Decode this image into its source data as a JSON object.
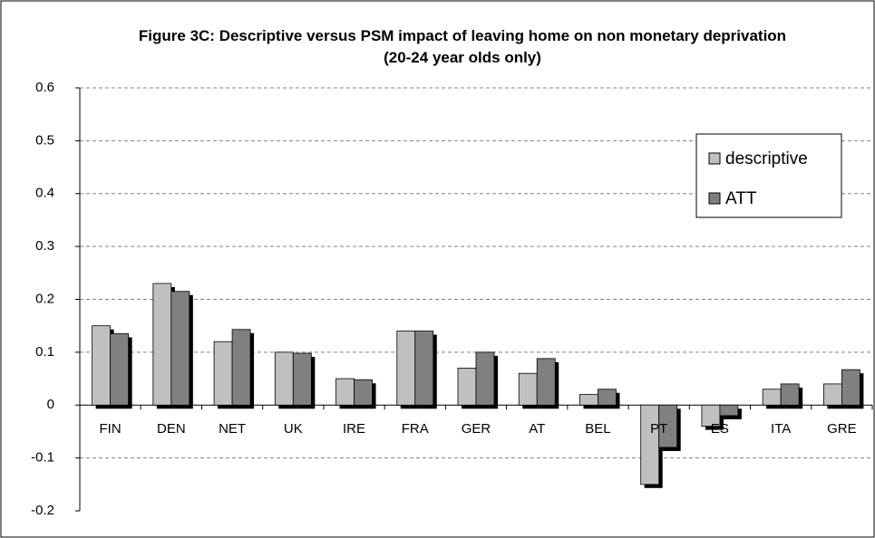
{
  "chart_data": {
    "type": "bar",
    "title": "Figure 3C: Descriptive versus PSM impact of leaving home on non monetary deprivation (20-24 year olds only)",
    "categories": [
      "FIN",
      "DEN",
      "NET",
      "UK",
      "IRE",
      "FRA",
      "GER",
      "AT",
      "BEL",
      "PT",
      "ES",
      "ITA",
      "GRE"
    ],
    "series": [
      {
        "name": "descriptive",
        "color": "#c0c0c0",
        "values": [
          0.15,
          0.23,
          0.12,
          0.1,
          0.05,
          0.14,
          0.07,
          0.06,
          0.02,
          -0.15,
          -0.04,
          0.03,
          0.04
        ]
      },
      {
        "name": "ATT",
        "color": "#808080",
        "values": [
          0.135,
          0.215,
          0.143,
          0.098,
          0.048,
          0.14,
          0.1,
          0.088,
          0.03,
          -0.08,
          -0.02,
          0.04,
          0.067
        ]
      }
    ],
    "ylim": [
      -0.2,
      0.6
    ],
    "yticks": [
      -0.2,
      -0.1,
      0,
      0.1,
      0.2,
      0.3,
      0.4,
      0.5,
      0.6
    ],
    "grid": true,
    "legend": "right"
  }
}
